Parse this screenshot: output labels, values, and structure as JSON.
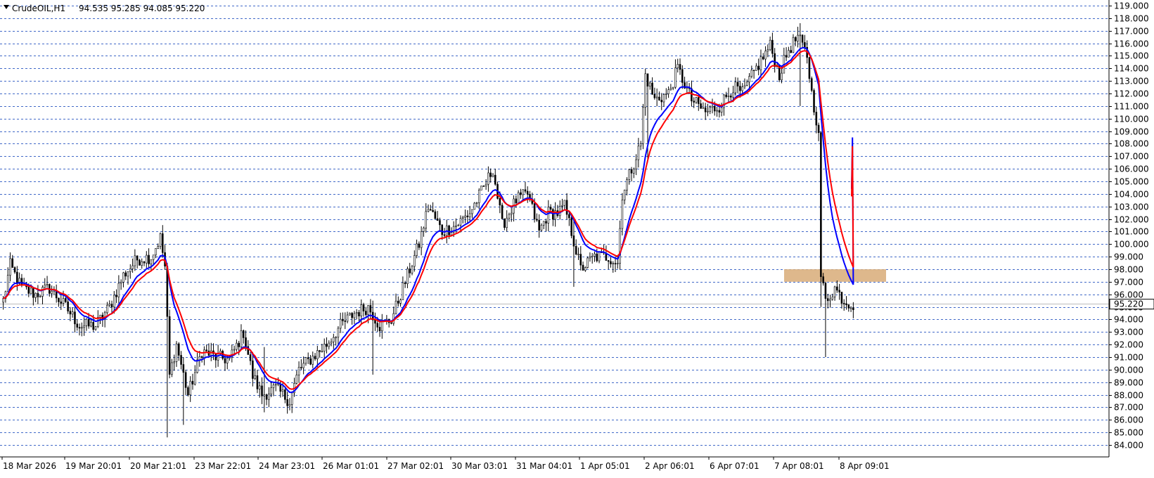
{
  "header": {
    "symbol": "CrudeOIL,H1",
    "ohlc": "94.535 95.285 94.085 95.220"
  },
  "colors": {
    "background": "#ffffff",
    "grid": "#4169c8",
    "candle": "#000000",
    "ma_fast": "#0000ff",
    "ma_slow": "#ff0000",
    "zone": "#d8ab78",
    "price_tag_bg": "#ffffff"
  },
  "chart_data": {
    "type": "candlestick",
    "title": "CrudeOIL,H1",
    "ylim": [
      84,
      119
    ],
    "grid": true,
    "y_ticks": [
      "119.000",
      "118.000",
      "117.000",
      "116.000",
      "115.000",
      "114.000",
      "113.000",
      "112.000",
      "111.000",
      "110.000",
      "109.000",
      "108.000",
      "107.000",
      "106.000",
      "105.000",
      "104.000",
      "103.000",
      "102.000",
      "101.000",
      "100.000",
      "99.000",
      "98.000",
      "97.000",
      "96.000",
      "95.000",
      "94.000",
      "93.000",
      "92.000",
      "91.000",
      "90.000",
      "89.000",
      "88.000",
      "87.000",
      "86.000",
      "85.000",
      "84.000"
    ],
    "x_labels": [
      "18 Mar 2026",
      "19 Mar 20:01",
      "20 Mar 21:01",
      "23 Mar 22:01",
      "24 Mar 23:01",
      "26 Mar 01:01",
      "27 Mar 02:01",
      "30 Mar 03:01",
      "31 Mar 04:01",
      "1 Apr 05:01",
      "2 Apr 06:01",
      "6 Apr 07:01",
      "7 Apr 08:01",
      "8 Apr 09:01"
    ],
    "current_price": 95.22,
    "zone": [
      97.0,
      98.0
    ],
    "price_anchors": [
      [
        0,
        95.5
      ],
      [
        3,
        98.3
      ],
      [
        8,
        96.5
      ],
      [
        14,
        96.0
      ],
      [
        20,
        96.5
      ],
      [
        27,
        95.0
      ],
      [
        33,
        93.5
      ],
      [
        40,
        93.5
      ],
      [
        46,
        95.0
      ],
      [
        52,
        97.5
      ],
      [
        58,
        98.8
      ],
      [
        64,
        99.0
      ],
      [
        68,
        100.5
      ],
      [
        70,
        98.2
      ],
      [
        72,
        89.5
      ],
      [
        75,
        92.0
      ],
      [
        80,
        88.0
      ],
      [
        86,
        91.5
      ],
      [
        92,
        91.0
      ],
      [
        98,
        90.8
      ],
      [
        104,
        93.0
      ],
      [
        108,
        89.5
      ],
      [
        112,
        88.0
      ],
      [
        118,
        88.5
      ],
      [
        124,
        87.5
      ],
      [
        128,
        90.0
      ],
      [
        134,
        91.0
      ],
      [
        140,
        92.0
      ],
      [
        146,
        93.5
      ],
      [
        152,
        94.5
      ],
      [
        158,
        95.0
      ],
      [
        163,
        93.5
      ],
      [
        168,
        94.0
      ],
      [
        174,
        97.0
      ],
      [
        180,
        100.0
      ],
      [
        184,
        103.0
      ],
      [
        190,
        101.0
      ],
      [
        196,
        101.5
      ],
      [
        202,
        102.5
      ],
      [
        208,
        104.5
      ],
      [
        212,
        106.0
      ],
      [
        216,
        101.5
      ],
      [
        222,
        103.5
      ],
      [
        227,
        104.0
      ],
      [
        232,
        101.0
      ],
      [
        236,
        102.5
      ],
      [
        240,
        102.5
      ],
      [
        243,
        103.0
      ],
      [
        246,
        101.0
      ],
      [
        250,
        98.0
      ],
      [
        256,
        99.0
      ],
      [
        262,
        99.0
      ],
      [
        266,
        98.5
      ],
      [
        268,
        104.0
      ],
      [
        272,
        106.0
      ],
      [
        276,
        108.0
      ],
      [
        278,
        113.5
      ],
      [
        282,
        111.5
      ],
      [
        288,
        112.0
      ],
      [
        292,
        114.0
      ],
      [
        298,
        111.5
      ],
      [
        304,
        110.5
      ],
      [
        310,
        111.0
      ],
      [
        316,
        112.5
      ],
      [
        320,
        112.0
      ],
      [
        326,
        114.0
      ],
      [
        332,
        115.8
      ],
      [
        336,
        113.5
      ],
      [
        340,
        115.5
      ],
      [
        344,
        116.5
      ],
      [
        348,
        115.0
      ],
      [
        350,
        112.0
      ],
      [
        352,
        110.0
      ],
      [
        353,
        108.5
      ],
      [
        354,
        97.5
      ],
      [
        356,
        95.5
      ],
      [
        360,
        96.5
      ],
      [
        364,
        95.5
      ],
      [
        368,
        95.2
      ]
    ],
    "spikes": [
      {
        "i": 71,
        "low": 84.6,
        "high": 98.5
      },
      {
        "i": 78,
        "low": 85.6,
        "high": 91.0
      },
      {
        "i": 113,
        "low": 86.6,
        "high": 91.8
      },
      {
        "i": 160,
        "low": 89.6,
        "high": 95.5
      },
      {
        "i": 247,
        "low": 96.6,
        "high": 102.0
      },
      {
        "i": 279,
        "low": 106.5,
        "high": 113.5
      },
      {
        "i": 345,
        "low": 111.0,
        "high": 117.6
      },
      {
        "i": 354,
        "low": 95.0,
        "high": 109.0
      },
      {
        "i": 356,
        "low": 91.0,
        "high": 97.0
      }
    ],
    "series": [
      {
        "name": "",
        "type": "ema",
        "period": 12,
        "color": "#0000ff"
      },
      {
        "name": "",
        "type": "ema",
        "period": 16,
        "color": "#ff0000"
      }
    ]
  }
}
